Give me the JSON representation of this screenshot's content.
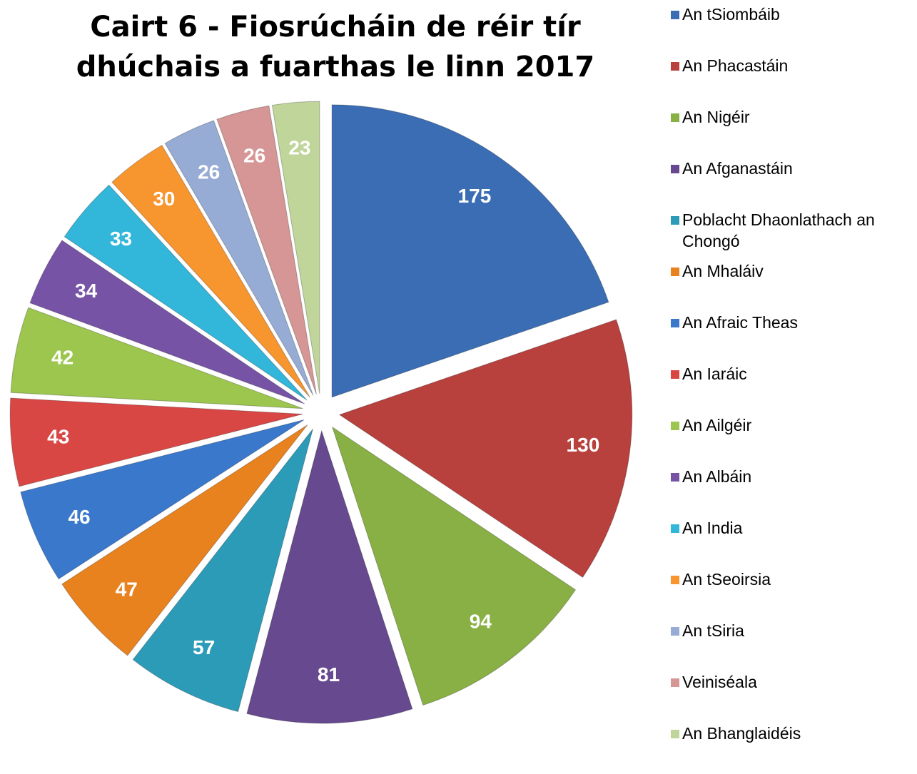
{
  "chart_data": {
    "type": "pie",
    "title": "Cairt 6 - Fiosrúcháin de réir tír dhúchais a fuarthas le linn 2017",
    "categories": [
      "An tSiombáib",
      "An Phacastáin",
      "An Nigéir",
      "An Afganastáin",
      "Poblacht Dhaonlathach an Chongó",
      "An Mhaláiv",
      "An Afraic Theas",
      "An Iaráic",
      "An Ailgéir",
      "An Albáin",
      "An India",
      "An tSeoirsia",
      "An tSiria",
      "Veiniséala",
      "An Bhanglaidéis"
    ],
    "values": [
      175,
      130,
      94,
      81,
      57,
      47,
      46,
      43,
      42,
      34,
      33,
      30,
      26,
      26,
      23
    ],
    "colors": [
      "#3a6db3",
      "#b8403d",
      "#88b044",
      "#66498f",
      "#2c9bb8",
      "#e8821f",
      "#3a78cc",
      "#d94745",
      "#9cc64e",
      "#7753a5",
      "#32b6d9",
      "#f7952e",
      "#97acd4",
      "#d59695",
      "#c0d59a"
    ],
    "legend": "right"
  }
}
